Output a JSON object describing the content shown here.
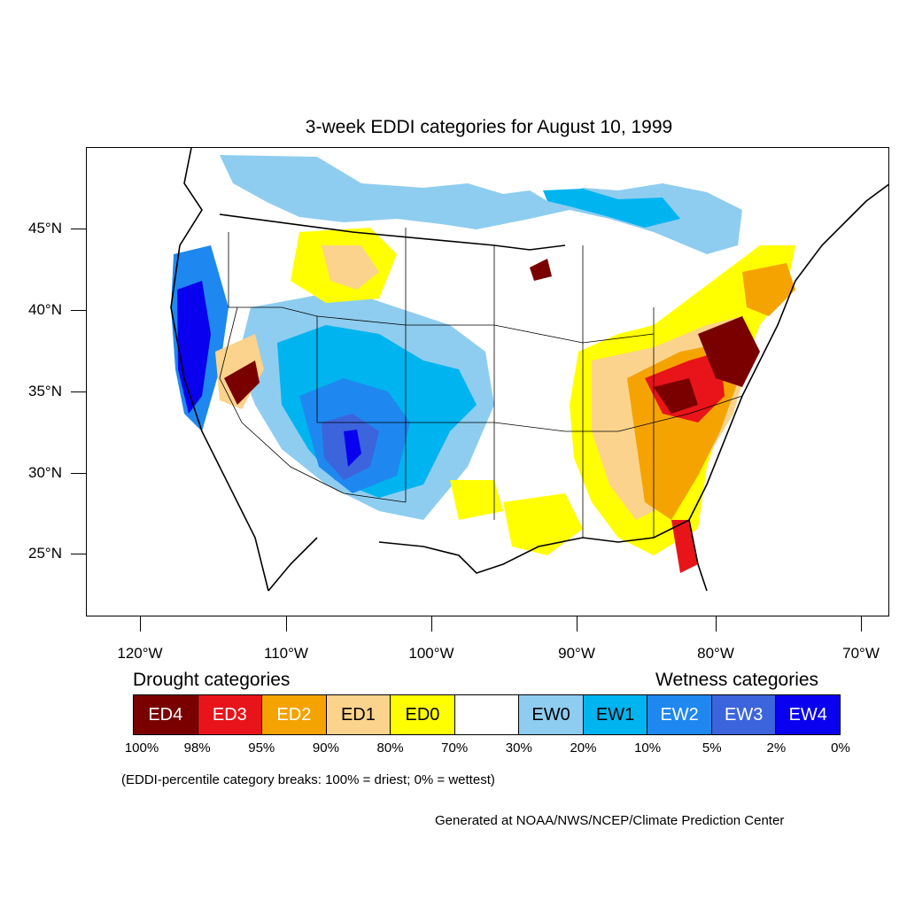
{
  "title": "3-week EDDI categories for August 10, 1999",
  "y_axis_labels": [
    "45°N",
    "40°N",
    "35°N",
    "30°N",
    "25°N"
  ],
  "x_axis_labels": [
    "120°W",
    "110°W",
    "100°W",
    "90°W",
    "80°W",
    "70°W"
  ],
  "legend": {
    "drought_title": "Drought categories",
    "wetness_title": "Wetness categories",
    "categories": [
      {
        "label": "ED4",
        "color": "#7a0000",
        "text_color": "#ffffff"
      },
      {
        "label": "ED3",
        "color": "#e8141a",
        "text_color": "#ffffff"
      },
      {
        "label": "ED2",
        "color": "#f5a300",
        "text_color": "#ffffff"
      },
      {
        "label": "ED1",
        "color": "#fbd38c",
        "text_color": "#000000"
      },
      {
        "label": "ED0",
        "color": "#ffff00",
        "text_color": "#000000"
      },
      {
        "label": "",
        "color": "#ffffff",
        "text_color": "#000000"
      },
      {
        "label": "EW0",
        "color": "#8ecdf0",
        "text_color": "#000000"
      },
      {
        "label": "EW1",
        "color": "#00b4f0",
        "text_color": "#000000"
      },
      {
        "label": "EW2",
        "color": "#1e88f0",
        "text_color": "#ffffff"
      },
      {
        "label": "EW3",
        "color": "#3c64dc",
        "text_color": "#ffffff"
      },
      {
        "label": "EW4",
        "color": "#0a00f0",
        "text_color": "#ffffff"
      }
    ],
    "percent_breaks": [
      "100%",
      "98%",
      "95%",
      "90%",
      "80%",
      "70%",
      "30%",
      "20%",
      "10%",
      "5%",
      "2%",
      "0%"
    ]
  },
  "note": "(EDDI-percentile category breaks: 100% = driest; 0% = wettest)",
  "credit": "Generated at NOAA/NWS/NCEP/Climate Prediction Center"
}
